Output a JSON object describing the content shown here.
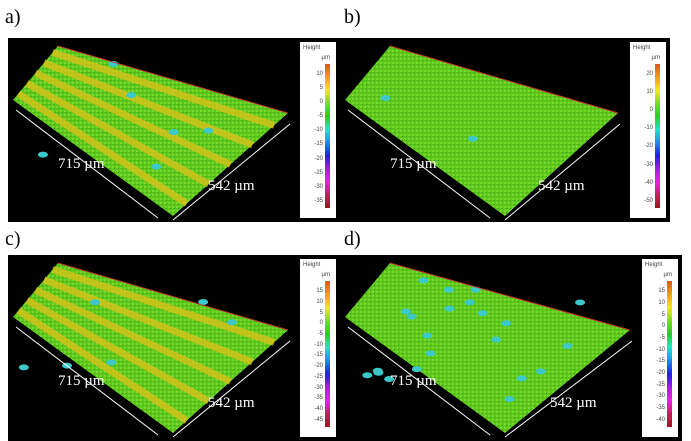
{
  "panels": [
    {
      "label": "a)",
      "width_label": "715 µm",
      "depth_label": "542 µm",
      "colorbar": {
        "title": "Height",
        "unit": "µm",
        "ticks": [
          "10",
          "5",
          "0",
          "-5",
          "-10",
          "-15",
          "-20",
          "-25",
          "-30",
          "-35"
        ]
      },
      "style": "grooved"
    },
    {
      "label": "b)",
      "width_label": "715 µm",
      "depth_label": "542 µm",
      "colorbar": {
        "title": "Height",
        "unit": "µm",
        "ticks": [
          "20",
          "10",
          "0",
          "-10",
          "-20",
          "-30",
          "-40",
          "-50"
        ]
      },
      "style": "flat"
    },
    {
      "label": "c)",
      "width_label": "715 µm",
      "depth_label": "542 µm",
      "colorbar": {
        "title": "Height",
        "unit": "µm",
        "ticks": [
          "15",
          "10",
          "5",
          "0",
          "-5",
          "-10",
          "-15",
          "-20",
          "-25",
          "-30",
          "-35",
          "-40",
          "-45"
        ]
      },
      "style": "grooved"
    },
    {
      "label": "d)",
      "width_label": "715 µm",
      "depth_label": "542 µm",
      "colorbar": {
        "title": "Height",
        "unit": "µm",
        "ticks": [
          "15",
          "10",
          "5",
          "0",
          "-5",
          "-10",
          "-15",
          "-20",
          "-25",
          "-30",
          "-35",
          "-40"
        ]
      },
      "style": "pitted"
    }
  ]
}
